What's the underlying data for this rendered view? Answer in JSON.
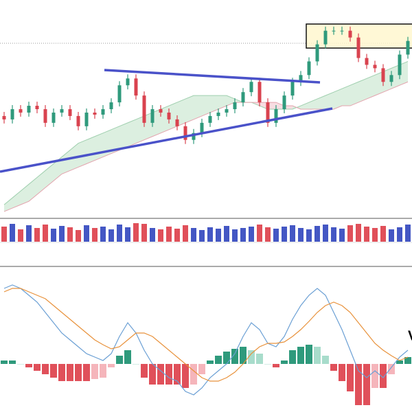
{
  "chart_data": [
    {
      "type": "candlestick",
      "ylim": [
        0,
        320
      ],
      "open": [
        150,
        145,
        160,
        155,
        165,
        160,
        140,
        155,
        160,
        150,
        135,
        155,
        152,
        160,
        170,
        195,
        205,
        180,
        140,
        160,
        155,
        145,
        135,
        115,
        125,
        140,
        150,
        155,
        160,
        170,
        185,
        200,
        170,
        140,
        160,
        180,
        200,
        210,
        230,
        255,
        275,
        275,
        275,
        265,
        235,
        225,
        220,
        200,
        210,
        240
      ],
      "high": [
        156,
        166,
        166,
        171,
        171,
        166,
        161,
        166,
        166,
        156,
        161,
        161,
        166,
        176,
        201,
        211,
        211,
        186,
        166,
        166,
        161,
        151,
        141,
        131,
        146,
        156,
        161,
        166,
        176,
        191,
        206,
        206,
        176,
        166,
        186,
        206,
        216,
        236,
        261,
        281,
        281,
        281,
        281,
        271,
        241,
        231,
        226,
        216,
        246,
        266
      ],
      "low": [
        139,
        139,
        149,
        149,
        154,
        134,
        134,
        149,
        144,
        129,
        129,
        146,
        146,
        154,
        164,
        189,
        174,
        134,
        134,
        149,
        139,
        129,
        109,
        109,
        119,
        134,
        144,
        149,
        154,
        164,
        179,
        164,
        134,
        134,
        154,
        174,
        194,
        204,
        224,
        249,
        269,
        269,
        259,
        229,
        219,
        214,
        194,
        194,
        204,
        234
      ],
      "close": [
        145,
        160,
        155,
        165,
        160,
        140,
        155,
        160,
        150,
        135,
        155,
        152,
        160,
        170,
        195,
        205,
        180,
        140,
        160,
        155,
        145,
        135,
        115,
        125,
        140,
        150,
        155,
        160,
        170,
        185,
        200,
        170,
        140,
        160,
        180,
        200,
        210,
        230,
        255,
        275,
        275,
        275,
        265,
        235,
        225,
        220,
        200,
        210,
        240,
        260
      ],
      "up_color": "#2f9a7c",
      "down_color": "#d9434f",
      "span_a": [
        20,
        30,
        40,
        50,
        60,
        70,
        80,
        90,
        100,
        110,
        115,
        120,
        125,
        130,
        135,
        140,
        145,
        150,
        155,
        160,
        165,
        170,
        175,
        180,
        180,
        180,
        180,
        180,
        175,
        170,
        170,
        165,
        160,
        160,
        160,
        160,
        165,
        170,
        175,
        180,
        185,
        190,
        195,
        200,
        205,
        210,
        215,
        220,
        225,
        230
      ],
      "span_b": [
        10,
        15,
        20,
        25,
        35,
        45,
        55,
        65,
        70,
        75,
        80,
        85,
        90,
        95,
        100,
        105,
        110,
        115,
        120,
        125,
        130,
        135,
        140,
        145,
        150,
        155,
        160,
        165,
        170,
        170,
        170,
        170,
        170,
        170,
        165,
        165,
        160,
        160,
        160,
        160,
        160,
        165,
        165,
        170,
        175,
        180,
        185,
        190,
        195,
        200
      ],
      "cloud_up_color": "#dcefe0",
      "cloud_down_color": "#f8dde2",
      "span_a_color": "#9fcfae",
      "span_b_color": "#e3a3ad"
    },
    {
      "type": "volume",
      "ylim": [
        0,
        34
      ],
      "values": [
        22,
        26,
        18,
        24,
        20,
        25,
        19,
        23,
        21,
        17,
        24,
        20,
        22,
        18,
        25,
        21,
        27,
        26,
        20,
        18,
        22,
        19,
        24,
        20,
        17,
        21,
        19,
        23,
        18,
        20,
        22,
        25,
        21,
        19,
        22,
        24,
        20,
        18,
        23,
        25,
        21,
        19,
        24,
        26,
        22,
        20,
        23,
        18,
        21,
        25
      ],
      "up_color": "#4457c4",
      "down_color": "#e0505a"
    },
    {
      "type": "macd",
      "ylim": [
        -70,
        140
      ],
      "macd": [
        110,
        115,
        110,
        100,
        90,
        75,
        60,
        45,
        35,
        25,
        15,
        10,
        5,
        15,
        40,
        60,
        45,
        20,
        0,
        -10,
        -20,
        -25,
        -40,
        -45,
        -35,
        -20,
        -10,
        0,
        15,
        40,
        60,
        50,
        30,
        25,
        40,
        65,
        85,
        100,
        110,
        100,
        75,
        50,
        20,
        -10,
        -20,
        -10,
        -20,
        -5,
        10,
        20
      ],
      "signal": [
        105,
        110,
        110,
        105,
        100,
        95,
        85,
        75,
        65,
        55,
        45,
        35,
        28,
        22,
        25,
        35,
        45,
        45,
        40,
        30,
        20,
        10,
        0,
        -10,
        -20,
        -25,
        -25,
        -20,
        -12,
        0,
        15,
        25,
        30,
        30,
        32,
        40,
        50,
        62,
        75,
        85,
        90,
        85,
        75,
        60,
        45,
        30,
        20,
        12,
        5,
        10
      ],
      "histogram": [
        5,
        5,
        0,
        -5,
        -10,
        -15,
        -20,
        -25,
        -25,
        -25,
        -25,
        -22,
        -20,
        -5,
        12,
        20,
        0,
        -20,
        -30,
        -30,
        -30,
        -30,
        -35,
        -30,
        -15,
        5,
        12,
        18,
        22,
        25,
        20,
        15,
        0,
        -5,
        5,
        20,
        25,
        28,
        25,
        12,
        -10,
        -25,
        -40,
        -60,
        -60,
        -35,
        -35,
        -15,
        5,
        10
      ],
      "macd_color": "#6a9fd4",
      "signal_color": "#e8913a",
      "hist_colors": [
        "#2f9a7c",
        "#a8dccb",
        "#e0505a",
        "#f5b5bb"
      ],
      "annotation": "V"
    }
  ]
}
